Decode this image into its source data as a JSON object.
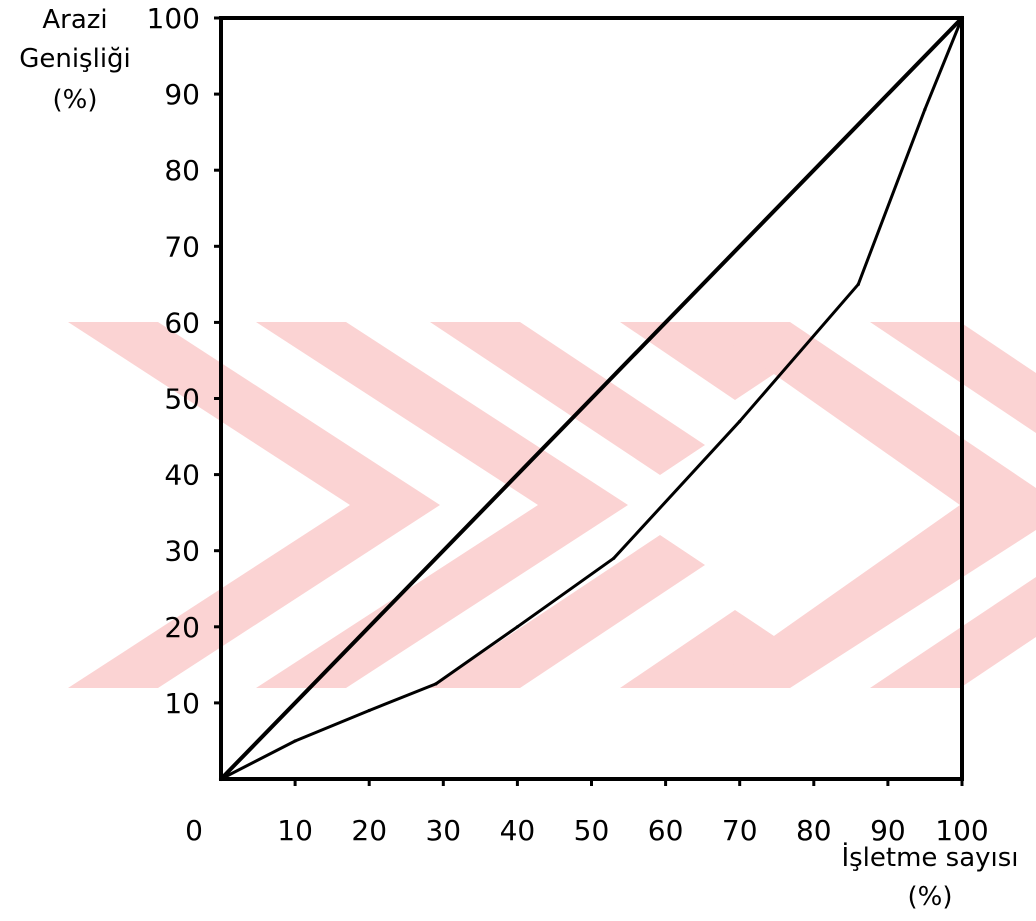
{
  "chart_data": {
    "type": "line",
    "title": "",
    "ylabel": [
      "Arazi",
      "Genişliği",
      "(%)"
    ],
    "xlabel": [
      "İşletme sayısı",
      "(%)"
    ],
    "xlim": [
      0,
      100
    ],
    "ylim": [
      0,
      100
    ],
    "x_ticks": [
      10,
      20,
      30,
      40,
      50,
      60,
      70,
      80,
      90,
      100
    ],
    "y_ticks": [
      10,
      20,
      30,
      40,
      50,
      60,
      70,
      80,
      90,
      100
    ],
    "origin_label": "0",
    "grid": false,
    "legend": "none",
    "series": [
      {
        "x": [
          0,
          100
        ],
        "y": [
          0,
          100
        ],
        "style": "equality diagonal",
        "color": "#000000"
      },
      {
        "x": [
          0,
          10,
          20,
          29,
          40,
          53,
          70,
          86,
          95,
          100
        ],
        "y": [
          0,
          5,
          9,
          12.5,
          20,
          29,
          47,
          65,
          88,
          100
        ],
        "style": "Lorenz curve",
        "color": "#000000"
      }
    ],
    "watermark_color": "#fbd3d3"
  }
}
